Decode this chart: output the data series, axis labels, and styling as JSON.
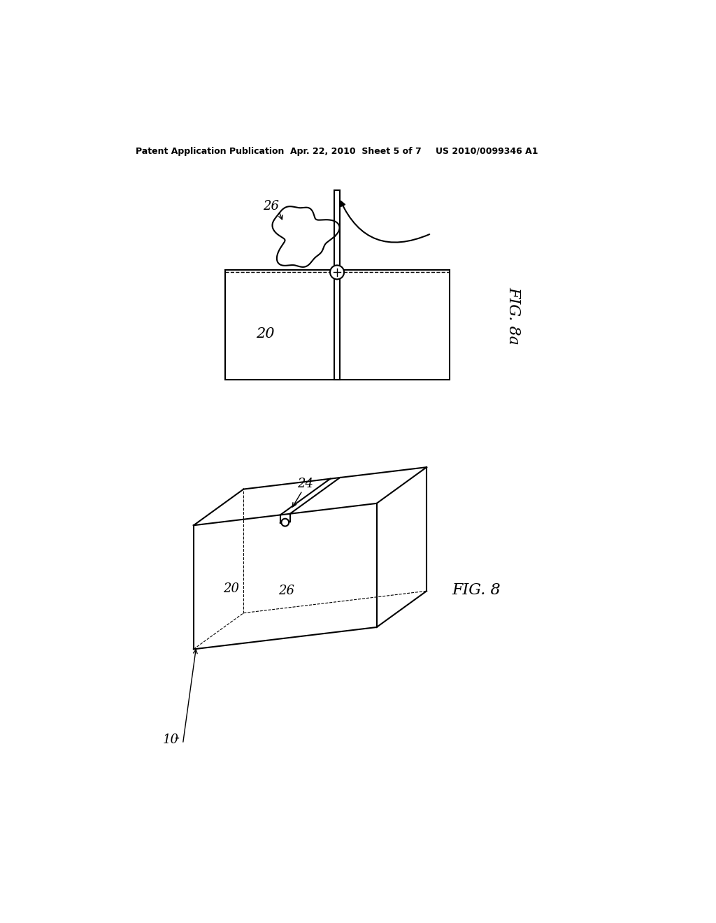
{
  "bg_color": "#ffffff",
  "line_color": "#000000",
  "header_text": "Patent Application Publication",
  "header_date": "Apr. 22, 2010  Sheet 5 of 7",
  "header_patent": "US 2010/0099346 A1",
  "fig8a_label": "FIG. 8a",
  "fig8_label": "FIG. 8",
  "label_20_top": "20",
  "label_26_top": "26",
  "label_10": "10",
  "label_20_bot": "20",
  "label_24": "24",
  "label_26_bot": "26"
}
